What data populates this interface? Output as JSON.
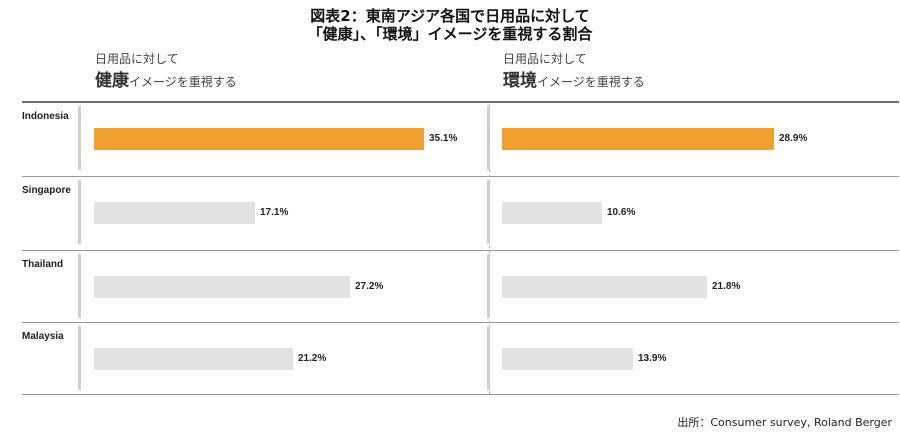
{
  "title": {
    "line1": "図表2：東南アジア各国で日用品に対して",
    "line2": "「健康」、「環境」イメージを重視する割合"
  },
  "column_headers": [
    {
      "sub": "日用品に対して",
      "main": "健康",
      "suffix": "イメージを重視する"
    },
    {
      "sub": "日用品に対して",
      "main": "環境",
      "suffix": "イメージを重視する"
    }
  ],
  "source": "出所：Consumer survey, Roland Berger",
  "colors": {
    "highlight": "#f0a031",
    "default_bar": "#e2e2e3"
  },
  "chart_data": [
    {
      "type": "bar",
      "orientation": "horizontal",
      "categories": [
        "Indonesia",
        "Singapore",
        "Thailand",
        "Malaysia"
      ],
      "series": [
        {
          "values": [
            35.1,
            17.1,
            27.2,
            21.2
          ]
        }
      ],
      "value_labels": [
        "35.1%",
        "17.1%",
        "27.2%",
        "21.2%"
      ],
      "highlighted_category": "Indonesia",
      "unit": "%"
    },
    {
      "type": "bar",
      "orientation": "horizontal",
      "categories": [
        "Indonesia",
        "Singapore",
        "Thailand",
        "Malaysia"
      ],
      "series": [
        {
          "values": [
            28.9,
            10.6,
            21.8,
            13.9
          ]
        }
      ],
      "value_labels": [
        "28.9%",
        "10.6%",
        "21.8%",
        "13.9%"
      ],
      "highlighted_category": "Indonesia",
      "unit": "%"
    }
  ]
}
